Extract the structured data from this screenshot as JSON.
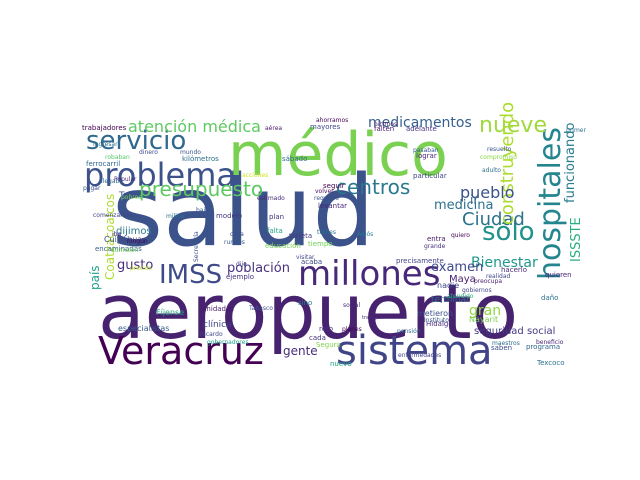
{
  "words": [
    {
      "text": "salud",
      "color": "#3b528b"
    },
    {
      "text": "aeropuerto",
      "color": "#46226f"
    },
    {
      "text": "médico",
      "color": "#7ad151"
    },
    {
      "text": "Veracruz",
      "color": "#440154"
    },
    {
      "text": "sistema",
      "color": "#414487"
    },
    {
      "text": "hospitales",
      "color": "#25858e"
    },
    {
      "text": "problema",
      "color": "#3b528b"
    },
    {
      "text": "servicio",
      "color": "#31688e"
    },
    {
      "text": "millones",
      "color": "#482878"
    },
    {
      "text": "IMSS",
      "color": "#3e4a89"
    },
    {
      "text": "presupuesto",
      "color": "#5ec962"
    },
    {
      "text": "centros",
      "color": "#2a788e"
    },
    {
      "text": "sólo",
      "color": "#21918c"
    },
    {
      "text": "Ciudad",
      "color": "#2c728e"
    },
    {
      "text": "nueve",
      "color": "#9fda3a"
    },
    {
      "text": "construyendo",
      "color": "#addc30"
    },
    {
      "text": "atención médica",
      "color": "#5ec962"
    },
    {
      "text": "medicamentos",
      "color": "#355f8d"
    },
    {
      "text": "pueblo",
      "color": "#3b528b"
    },
    {
      "text": "medicina",
      "color": "#2c728e"
    },
    {
      "text": "gran",
      "color": "#90d743"
    },
    {
      "text": "ir",
      "color": "#31688e"
    },
    {
      "text": "funcionando",
      "color": "#287c8e"
    },
    {
      "text": "ISSSTE",
      "color": "#29af7f"
    },
    {
      "text": "Bienestar",
      "color": "#1f988b"
    },
    {
      "text": "población",
      "color": "#46327e"
    },
    {
      "text": "gusto",
      "color": "#472d7b"
    },
    {
      "text": "país",
      "color": "#1fa188"
    },
    {
      "text": "Coatzacoalcos",
      "color": "#addc30"
    },
    {
      "text": "examen",
      "color": "#3e4989"
    },
    {
      "text": "Maya",
      "color": "#482173"
    },
    {
      "text": "Tren",
      "color": "#3b528b"
    },
    {
      "text": "dijimos",
      "color": "#2a788e"
    },
    {
      "text": "seguridad social",
      "color": "#443983"
    },
    {
      "text": "gente",
      "color": "#472c7a"
    },
    {
      "text": "trabajadores",
      "color": "#440154"
    },
    {
      "text": "ferrocarril",
      "color": "#31688e"
    },
    {
      "text": "Cuitláhuac",
      "color": "#3e4c8a"
    },
    {
      "text": "especialistas",
      "color": "#365c8d"
    },
    {
      "text": "Fíjense",
      "color": "#22a884"
    },
    {
      "text": "clínica",
      "color": "#404688"
    },
    {
      "text": "reto",
      "color": "#46337f"
    },
    {
      "text": "nuevo",
      "color": "#1fa187"
    },
    {
      "text": "precisamente",
      "color": "#414487"
    },
    {
      "text": "metieron",
      "color": "#3b528b"
    },
    {
      "text": "Hidalgo",
      "color": "#472d7b"
    },
    {
      "text": "programa",
      "color": "#31688e"
    },
    {
      "text": "Texcoco",
      "color": "#2d708e"
    },
    {
      "text": "beneficio",
      "color": "#482576"
    },
    {
      "text": "enfermedades",
      "color": "#424086"
    },
    {
      "text": "mayores",
      "color": "#3e4989"
    },
    {
      "text": "acaba",
      "color": "#404688"
    },
    {
      "text": "cada",
      "color": "#463480"
    },
    {
      "text": "educación",
      "color": "#7ad151"
    },
    {
      "text": "tarjeta",
      "color": "#443b84"
    },
    {
      "text": "tiempo",
      "color": "#70cf57"
    },
    {
      "text": "plan",
      "color": "#46337f"
    },
    {
      "text": "cosa",
      "color": "#3c4f8a"
    },
    {
      "text": "rurales",
      "color": "#38598c"
    },
    {
      "text": "modelo",
      "color": "#453581"
    },
    {
      "text": "ejemplo",
      "color": "#472f7d"
    },
    {
      "text": "Secretaría",
      "color": "#3b528b"
    },
    {
      "text": "levantar",
      "color": "#482677"
    },
    {
      "text": "seguir",
      "color": "#440256"
    },
    {
      "text": "volver",
      "color": "#460a5d"
    },
    {
      "text": "requiere",
      "color": "#3b528b"
    },
    {
      "text": "entra",
      "color": "#481769"
    },
    {
      "text": "grande",
      "color": "#46307e"
    },
    {
      "text": "nadie",
      "color": "#3f4788"
    },
    {
      "text": "terminar",
      "color": "#2e6e8e"
    },
    {
      "text": "quieren",
      "color": "#482475"
    },
    {
      "text": "preocupa",
      "color": "#481b6d"
    },
    {
      "text": "sino",
      "color": "#25838e"
    },
    {
      "text": "pagar",
      "color": "#3b528b"
    },
    {
      "text": "llegaba",
      "color": "#31688e"
    },
    {
      "text": "comenzamos",
      "color": "#414487"
    },
    {
      "text": "encaminadas",
      "color": "#365c8d"
    },
    {
      "text": "Popular",
      "color": "#472d7b"
    },
    {
      "text": "ningún",
      "color": "#440154"
    },
    {
      "text": "iba",
      "color": "#482475"
    },
    {
      "text": "adelante",
      "color": "#46327e"
    },
    {
      "text": "falten",
      "color": "#482071"
    },
    {
      "text": "hicimos",
      "color": "#481f70"
    },
    {
      "text": "ahorramos",
      "color": "#440154"
    },
    {
      "text": "resuelto",
      "color": "#3b528b"
    },
    {
      "text": "compromiso",
      "color": "#8bd646"
    },
    {
      "text": "adulto",
      "color": "#2c728e"
    },
    {
      "text": "realidad",
      "color": "#3e4989"
    },
    {
      "text": "gobiernos",
      "color": "#404588"
    },
    {
      "text": "kilómetros",
      "color": "#2c718e"
    },
    {
      "text": "robaban",
      "color": "#54c568"
    },
    {
      "text": "dinero",
      "color": "#3e4a89"
    },
    {
      "text": "mundo",
      "color": "#3a548c"
    },
    {
      "text": "ingresar",
      "color": "#2c728e"
    },
    {
      "text": "pobres",
      "color": "#75d054"
    },
    {
      "text": "militar",
      "color": "#2b748e"
    },
    {
      "text": "falta",
      "color": "#20a386"
    },
    {
      "text": "estimado",
      "color": "#482878"
    },
    {
      "text": "acciones",
      "color": "#d2e21b"
    },
    {
      "text": "particular",
      "color": "#3e4989"
    },
    {
      "text": "lograr",
      "color": "#482979"
    },
    {
      "text": "pasaban",
      "color": "#38588c"
    },
    {
      "text": "sábado",
      "color": "#31688e"
    },
    {
      "text": "quiero",
      "color": "#440154"
    },
    {
      "text": "atendido",
      "color": "#2db27d"
    },
    {
      "text": "Nayarit",
      "color": "#7ad151"
    },
    {
      "text": "saben",
      "color": "#3d4d8a"
    },
    {
      "text": "maestros",
      "color": "#2f6c8e"
    },
    {
      "text": "pensión",
      "color": "#31688e"
    },
    {
      "text": "planes",
      "color": "#440154"
    },
    {
      "text": "Segura",
      "color": "#7fd34e"
    },
    {
      "text": "social",
      "color": "#482777"
    },
    {
      "text": "hacerlo",
      "color": "#472a7a"
    },
    {
      "text": "daño",
      "color": "#2d718e"
    },
    {
      "text": "unidades",
      "color": "#481b6d"
    },
    {
      "text": "Ricardo",
      "color": "#3f4889"
    },
    {
      "text": "gobernadores",
      "color": "#1f9e89"
    },
    {
      "text": "Tabasco",
      "color": "#3b528b"
    },
    {
      "text": "precios",
      "color": "#bddf26"
    },
    {
      "text": "admisión",
      "color": "#73d056"
    },
    {
      "text": "aérea",
      "color": "#48186a"
    },
    {
      "text": "trabajan",
      "color": "#482878"
    },
    {
      "text": "Adiós",
      "color": "#2a788e"
    },
    {
      "text": "trenes",
      "color": "#2c728e"
    },
    {
      "text": "dije",
      "color": "#3e4989"
    },
    {
      "text": "bajó",
      "color": "#3a548c"
    },
    {
      "text": "visitar",
      "color": "#3f4889"
    },
    {
      "text": "Instituto",
      "color": "#375b8d"
    },
    {
      "text": "primer",
      "color": "#2c728e"
    }
  ]
}
